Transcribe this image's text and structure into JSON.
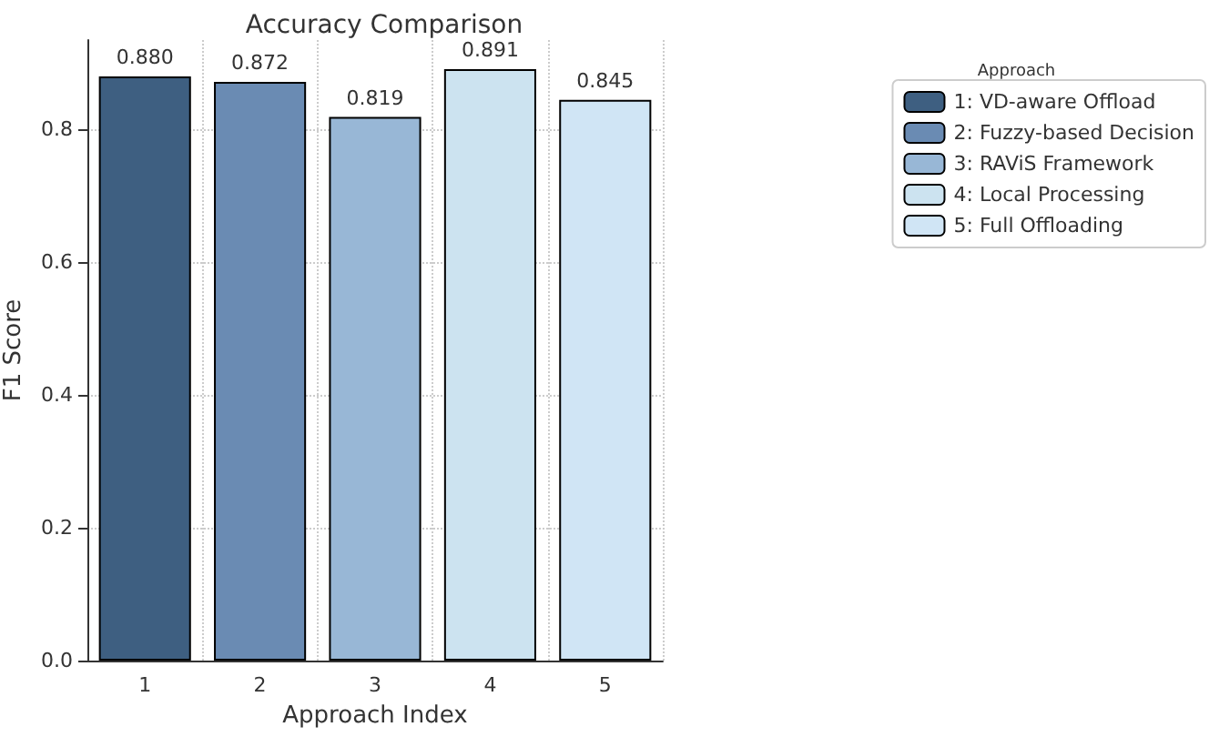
{
  "chart_data": {
    "type": "bar",
    "title": "Accuracy Comparison",
    "xlabel": "Approach Index",
    "ylabel": "F1 Score",
    "legend_title": "Approach",
    "categories": [
      "1",
      "2",
      "3",
      "4",
      "5"
    ],
    "series": [
      {
        "name": "1: VD-aware Offload",
        "color": "#3e5f81",
        "values": [
          0.88,
          null,
          null,
          null,
          null
        ],
        "value_labels": [
          "0.880",
          null,
          null,
          null,
          null
        ]
      },
      {
        "name": "2: Fuzzy-based Decision",
        "color": "#6a8bb3",
        "values": [
          null,
          0.872,
          null,
          null,
          null
        ],
        "value_labels": [
          null,
          "0.872",
          null,
          null,
          null
        ]
      },
      {
        "name": "3: RAViS Framework",
        "color": "#98b7d6",
        "values": [
          null,
          null,
          0.819,
          null,
          null
        ],
        "value_labels": [
          null,
          null,
          "0.819",
          null,
          null
        ]
      },
      {
        "name": "4: Local Processing",
        "color": "#cce3f0",
        "values": [
          null,
          null,
          null,
          0.891,
          null
        ],
        "value_labels": [
          null,
          null,
          null,
          "0.891",
          null
        ]
      },
      {
        "name": "5: Full Offloading",
        "color": "#d0e5f5",
        "values": [
          null,
          null,
          null,
          null,
          0.845
        ],
        "value_labels": [
          null,
          null,
          null,
          null,
          "0.845"
        ]
      }
    ],
    "ylim": [
      0,
      0.935
    ],
    "yticks": [
      {
        "value": 0,
        "label": "0.0"
      },
      {
        "value": 0.2,
        "label": "0.2"
      },
      {
        "value": 0.4,
        "label": "0.4"
      },
      {
        "value": 0.6,
        "label": "0.6"
      },
      {
        "value": 0.8,
        "label": "0.8"
      }
    ],
    "grid": true,
    "legend": "top right"
  }
}
